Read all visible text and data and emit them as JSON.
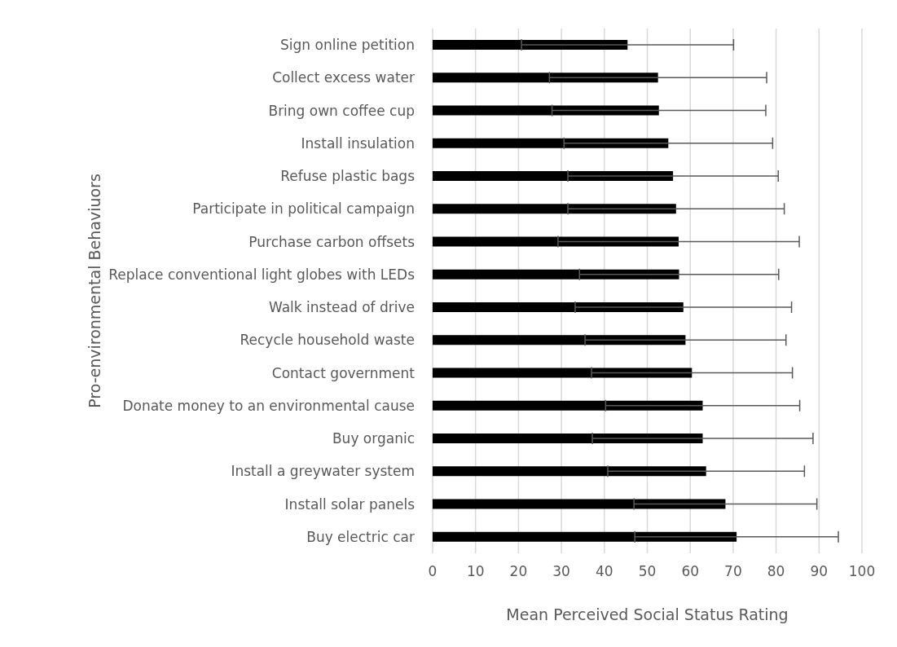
{
  "chart_data": {
    "type": "bar",
    "orientation": "horizontal",
    "xlabel": "Mean Perceived Social Status Rating",
    "ylabel": "Pro-environmental Behaviuors",
    "categories": [
      "Sign online petition",
      "Collect excess water",
      "Bring own coffee cup",
      "Install insulation",
      "Refuse plastic bags",
      "Participate in political campaign",
      "Purchase carbon offsets",
      "Replace conventional light globes with LEDs",
      "Walk instead of drive",
      "Recycle household waste",
      "Contact government",
      "Donate money to an environmental cause",
      "Buy organic",
      "Install a greywater system",
      "Install solar panels",
      "Buy electric car"
    ],
    "series": [
      {
        "color": "#000000",
        "values": [
          45.4,
          52.5,
          52.7,
          54.9,
          56.0,
          56.7,
          57.3,
          57.4,
          58.4,
          58.9,
          60.4,
          62.9,
          62.9,
          63.7,
          68.2,
          70.8
        ],
        "errors": [
          24.7,
          25.3,
          24.9,
          24.3,
          24.5,
          25.2,
          28.1,
          23.2,
          25.2,
          23.4,
          23.4,
          22.6,
          25.7,
          22.9,
          21.3,
          23.7
        ]
      }
    ],
    "xlim": [
      0,
      100
    ],
    "xticks": [
      0,
      10,
      20,
      30,
      40,
      50,
      60,
      70,
      80,
      90,
      100
    ],
    "grid": "x",
    "legend": false
  }
}
